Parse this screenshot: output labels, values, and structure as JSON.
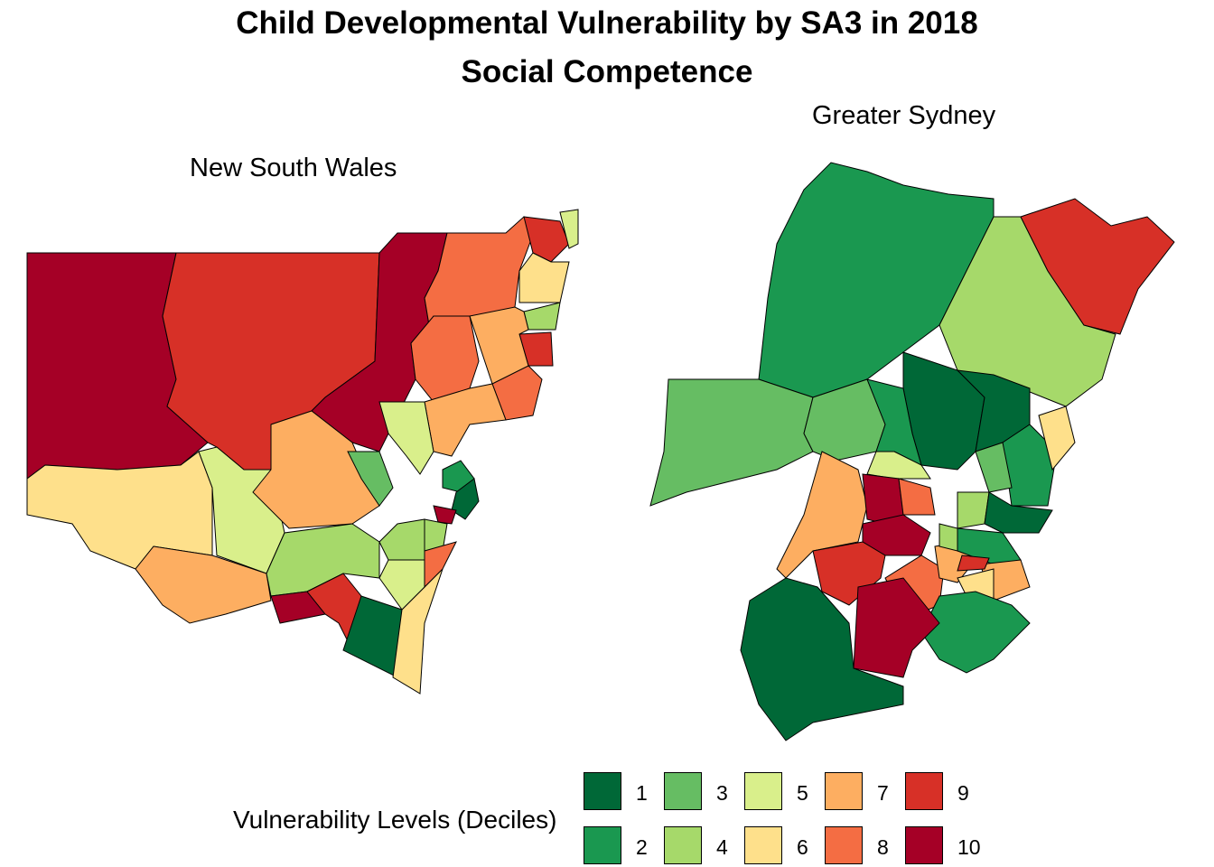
{
  "title": "Child Developmental Vulnerability by SA3 in 2018",
  "subtitle": "Social Competence",
  "chart_data": {
    "type": "choropleth-map",
    "panels": [
      {
        "title": "New South Wales",
        "region_deciles": [
          10,
          9,
          10,
          6,
          5,
          7,
          7,
          4,
          10,
          9,
          1,
          6,
          3,
          8,
          9,
          5,
          6,
          4,
          9,
          7,
          8,
          8,
          7,
          5,
          2,
          1,
          10,
          4,
          5,
          4,
          8
        ]
      },
      {
        "title": "Greater Sydney",
        "region_deciles": [
          2,
          4,
          9,
          3,
          1,
          3,
          2,
          5,
          7,
          10,
          10,
          8,
          9,
          8,
          7,
          1,
          1,
          2,
          3,
          4,
          1,
          6,
          2,
          7,
          6,
          9,
          4,
          2
        ]
      }
    ],
    "legend": {
      "title": "Vulnerability Levels (Deciles)",
      "items": [
        {
          "label": "1",
          "color": "#006837"
        },
        {
          "label": "2",
          "color": "#1a9850"
        },
        {
          "label": "3",
          "color": "#66bd63"
        },
        {
          "label": "4",
          "color": "#a6d96a"
        },
        {
          "label": "5",
          "color": "#d9ef8b"
        },
        {
          "label": "6",
          "color": "#fee08b"
        },
        {
          "label": "7",
          "color": "#fdae61"
        },
        {
          "label": "8",
          "color": "#f46d43"
        },
        {
          "label": "9",
          "color": "#d73027"
        },
        {
          "label": "10",
          "color": "#a50026"
        }
      ]
    }
  }
}
